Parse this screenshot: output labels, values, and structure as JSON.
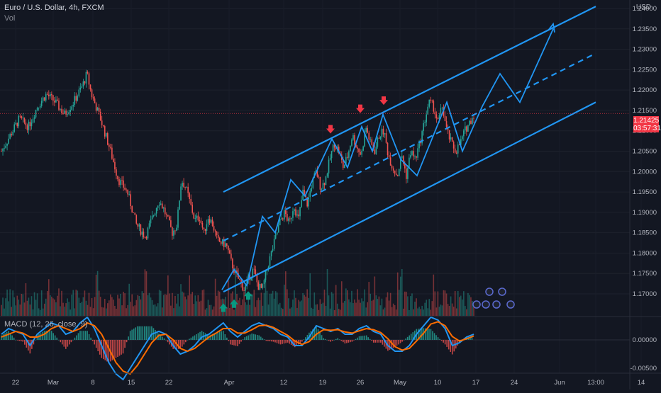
{
  "header": {
    "title": "Euro / U.S. Dollar, 4h, FXCM",
    "volume_label": "Vol",
    "macd_label": "MACD (12, 26, close, 9)",
    "currency": "USD"
  },
  "current_price": {
    "value": "1.21425",
    "countdown": "03:57:31"
  },
  "colors": {
    "background": "#131722",
    "up_candle": "#26a69a",
    "down_candle": "#ef5350",
    "drawing": "#2196f3",
    "macd_line": "#2196f3",
    "signal_line": "#ff6d00",
    "arrow_down": "#f23645",
    "arrow_up": "#089981"
  },
  "chart_data": [
    {
      "type": "candlestick",
      "title": "Euro / U.S. Dollar, 4h, FXCM",
      "y_ticks": [
        "1.24000",
        "1.23500",
        "1.23000",
        "1.22500",
        "1.22000",
        "1.21500",
        "1.21000",
        "1.20500",
        "1.20000",
        "1.19500",
        "1.19000",
        "1.18500",
        "1.18000",
        "1.17500",
        "1.17000"
      ],
      "x_ticks": [
        "22",
        "Mar",
        "8",
        "15",
        "22",
        "Apr",
        "12",
        "19",
        "26",
        "May",
        "10",
        "17",
        "24",
        "Jun",
        "13:00",
        "14"
      ],
      "ylim": [
        1.167,
        1.242
      ],
      "price_path": [
        [
          0,
          1.205
        ],
        [
          2,
          1.209
        ],
        [
          4,
          1.213
        ],
        [
          6,
          1.211
        ],
        [
          8,
          1.216
        ],
        [
          10,
          1.219
        ],
        [
          12,
          1.217
        ],
        [
          14,
          1.214
        ],
        [
          16,
          1.217
        ],
        [
          18,
          1.221
        ],
        [
          19,
          1.224
        ],
        [
          20,
          1.219
        ],
        [
          22,
          1.213
        ],
        [
          24,
          1.206
        ],
        [
          26,
          1.198
        ],
        [
          28,
          1.195
        ],
        [
          30,
          1.187
        ],
        [
          32,
          1.184
        ],
        [
          34,
          1.19
        ],
        [
          35,
          1.193
        ],
        [
          36,
          1.191
        ],
        [
          38,
          1.185
        ],
        [
          39,
          1.187
        ],
        [
          40,
          1.198
        ],
        [
          41,
          1.196
        ],
        [
          42,
          1.192
        ],
        [
          43,
          1.188
        ],
        [
          44,
          1.189
        ],
        [
          45,
          1.185
        ],
        [
          46,
          1.189
        ],
        [
          47,
          1.187
        ],
        [
          48,
          1.183
        ],
        [
          50,
          1.182
        ],
        [
          51,
          1.178
        ],
        [
          52,
          1.175
        ],
        [
          53,
          1.173
        ],
        [
          54,
          1.171
        ],
        [
          55,
          1.174
        ],
        [
          56,
          1.176
        ],
        [
          57,
          1.172
        ],
        [
          58,
          1.171
        ],
        [
          59,
          1.176
        ],
        [
          60,
          1.18
        ],
        [
          61,
          1.184
        ],
        [
          62,
          1.188
        ],
        [
          63,
          1.19
        ],
        [
          64,
          1.187
        ],
        [
          65,
          1.192
        ],
        [
          66,
          1.188
        ],
        [
          67,
          1.195
        ],
        [
          68,
          1.192
        ],
        [
          69,
          1.197
        ],
        [
          70,
          1.2
        ],
        [
          71,
          1.196
        ],
        [
          72,
          1.198
        ],
        [
          73,
          1.203
        ],
        [
          74,
          1.207
        ],
        [
          75,
          1.205
        ],
        [
          76,
          1.201
        ],
        [
          77,
          1.204
        ],
        [
          78,
          1.209
        ],
        [
          79,
          1.206
        ],
        [
          80,
          1.204
        ],
        [
          81,
          1.211
        ],
        [
          82,
          1.207
        ],
        [
          83,
          1.205
        ],
        [
          84,
          1.209
        ],
        [
          85,
          1.21
        ],
        [
          86,
          1.204
        ],
        [
          87,
          1.201
        ],
        [
          88,
          1.199
        ],
        [
          89,
          1.204
        ],
        [
          90,
          1.199
        ],
        [
          91,
          1.205
        ],
        [
          92,
          1.203
        ],
        [
          93,
          1.207
        ],
        [
          94,
          1.212
        ],
        [
          95,
          1.217
        ],
        [
          96,
          1.216
        ],
        [
          97,
          1.212
        ],
        [
          98,
          1.216
        ],
        [
          99,
          1.21
        ],
        [
          100,
          1.207
        ],
        [
          101,
          1.205
        ],
        [
          102,
          1.207
        ],
        [
          103,
          1.21
        ],
        [
          104,
          1.212
        ],
        [
          105,
          1.214
        ]
      ],
      "channel_lines": {
        "upper": [
          [
            1.195,
            0.0
          ],
          [
            1.2405,
            1.0
          ]
        ],
        "middle": [
          [
            1.183,
            0.0
          ],
          [
            1.229,
            1.0
          ]
        ],
        "lower": [
          [
            1.1705,
            0.0
          ],
          [
            1.217,
            1.0
          ]
        ]
      },
      "markers": {
        "down_arrows": 3,
        "up_arrows": 3
      }
    },
    {
      "type": "line",
      "title": "MACD (12, 26, close, 9)",
      "y_ticks": [
        "0.00000",
        "-0.00500"
      ],
      "series": [
        {
          "name": "MACD",
          "values": [
            0.001,
            0.002,
            0.0015,
            0.001,
            -0.001,
            0.001,
            0.002,
            0.003,
            0.0025,
            0.001,
            0.0015,
            0.003,
            0.004,
            0.002,
            -0.001,
            -0.004,
            -0.006,
            -0.007,
            -0.005,
            -0.003,
            -0.001,
            0.001,
            0.0015,
            0.001,
            -0.001,
            -0.0025,
            -0.002,
            -0.001,
            0.0005,
            0.001,
            0.002,
            0.003,
            0.0015,
            0.0005,
            0.0015,
            0.0025,
            0.003,
            0.0025,
            0.002,
            0.001,
            0.0005,
            -0.001,
            -0.001,
            0.0005,
            0.0025,
            0.002,
            0.0015,
            0.002,
            0.001,
            0.001,
            0.002,
            0.0025,
            0.0015,
            0.001,
            -0.001,
            -0.002,
            -0.002,
            -0.001,
            0.001,
            0.0025,
            0.004,
            0.0035,
            0.002,
            -0.001,
            -0.0005,
            0.0005,
            0.001
          ]
        },
        {
          "name": "Signal",
          "values": [
            0.0005,
            0.001,
            0.0015,
            0.0012,
            0.0005,
            0.0005,
            0.001,
            0.002,
            0.0025,
            0.002,
            0.0015,
            0.002,
            0.003,
            0.0025,
            0.001,
            -0.0015,
            -0.004,
            -0.0055,
            -0.006,
            -0.0045,
            -0.0025,
            -0.0005,
            0.0008,
            0.001,
            0.0,
            -0.0015,
            -0.002,
            -0.0015,
            -0.0005,
            0.0005,
            0.0012,
            0.002,
            0.002,
            0.0012,
            0.0012,
            0.0018,
            0.0025,
            0.0026,
            0.0022,
            0.0015,
            0.0008,
            -0.0002,
            -0.0008,
            -0.0003,
            0.001,
            0.0018,
            0.0017,
            0.0018,
            0.0014,
            0.0012,
            0.0016,
            0.002,
            0.0018,
            0.0013,
            0.0002,
            -0.0012,
            -0.0018,
            -0.0015,
            -0.0002,
            0.0012,
            0.0028,
            0.0032,
            0.0025,
            0.0006,
            -0.0002,
            0.0002,
            0.0007
          ]
        }
      ]
    }
  ]
}
